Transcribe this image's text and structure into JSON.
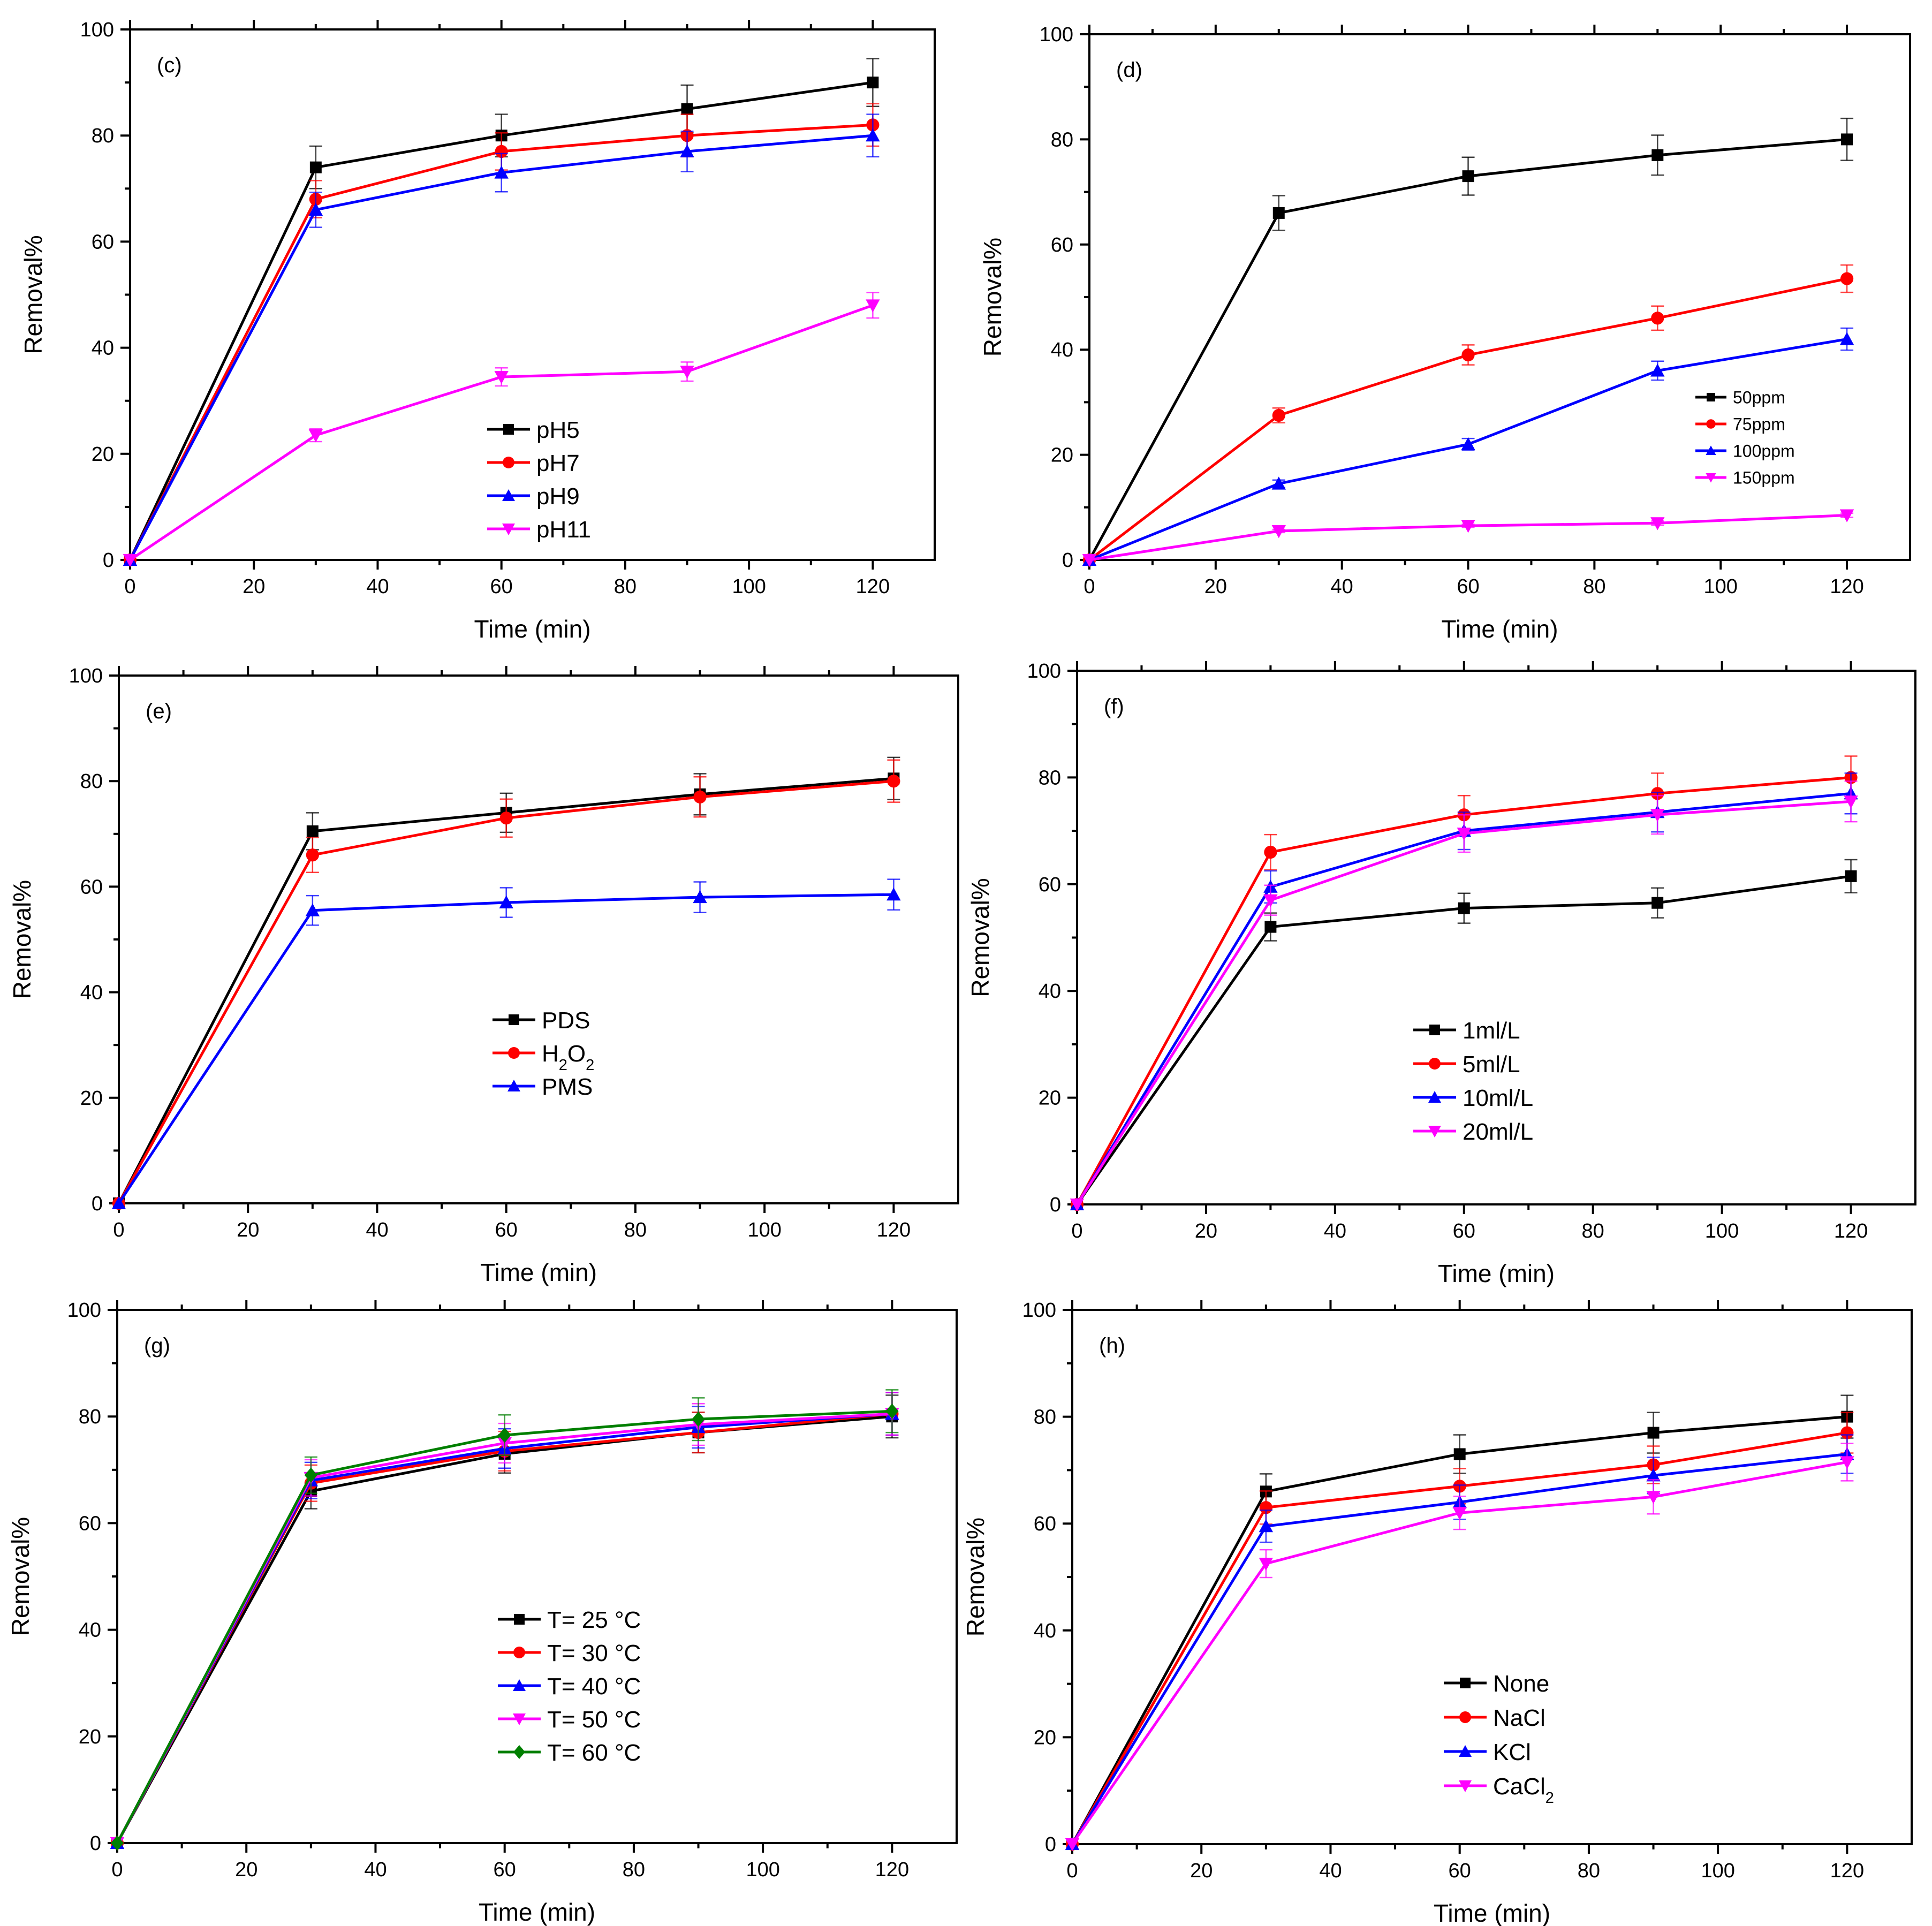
{
  "figure": {
    "layout": "3 rows x 2 columns of line charts with error bars",
    "series_colors": {
      "black": "#000000",
      "red": "#ff0000",
      "blue": "#0000ff",
      "magenta": "#ff00ff",
      "green": "#007f00"
    }
  },
  "chart_data": [
    {
      "type": "line",
      "panel": "(c)",
      "xlabel": "Time (min)",
      "ylabel": "Removal%",
      "xlim": [
        0,
        130
      ],
      "ylim": [
        0,
        100
      ],
      "x_ticks": [
        0,
        20,
        40,
        60,
        80,
        100,
        120
      ],
      "y_ticks": [
        0,
        20,
        40,
        60,
        80,
        100
      ],
      "legend_position": "center-bottom",
      "x": [
        0,
        30,
        60,
        90,
        120
      ],
      "series": [
        {
          "name": "pH5",
          "color": "#000000",
          "marker": "square",
          "values": [
            0,
            74,
            80,
            85,
            90
          ],
          "errors": [
            0,
            4,
            4,
            4.5,
            4.5
          ]
        },
        {
          "name": "pH7",
          "color": "#ff0000",
          "marker": "circle",
          "values": [
            0,
            68,
            77,
            80,
            82
          ],
          "errors": [
            0,
            3.5,
            3.5,
            4,
            4
          ]
        },
        {
          "name": "pH9",
          "color": "#0000ff",
          "marker": "triangle-up",
          "values": [
            0,
            66,
            73,
            77,
            80
          ],
          "errors": [
            0,
            3.3,
            3.6,
            3.8,
            4
          ]
        },
        {
          "name": "pH11",
          "color": "#ff00ff",
          "marker": "triangle-down",
          "values": [
            0,
            23.5,
            34.5,
            35.5,
            48
          ],
          "errors": [
            0,
            1.2,
            1.7,
            1.8,
            2.4
          ]
        }
      ]
    },
    {
      "type": "line",
      "panel": "(d)",
      "xlabel": "Time (min)",
      "ylabel": "Removal%",
      "xlim": [
        0,
        130
      ],
      "ylim": [
        0,
        100
      ],
      "x_ticks": [
        0,
        20,
        40,
        60,
        80,
        100,
        120
      ],
      "y_ticks": [
        0,
        20,
        40,
        60,
        80,
        100
      ],
      "legend_position": "right-center",
      "x": [
        0,
        30,
        60,
        90,
        120
      ],
      "series": [
        {
          "name": "50ppm",
          "color": "#000000",
          "marker": "square",
          "values": [
            0,
            66,
            73,
            77,
            80
          ],
          "errors": [
            0,
            3.3,
            3.6,
            3.8,
            4
          ]
        },
        {
          "name": "75ppm",
          "color": "#ff0000",
          "marker": "circle",
          "values": [
            0,
            27.5,
            39,
            46,
            53.5
          ],
          "errors": [
            0,
            1.4,
            1.9,
            2.3,
            2.6
          ]
        },
        {
          "name": "100ppm",
          "color": "#0000ff",
          "marker": "triangle-up",
          "values": [
            0,
            14.5,
            22,
            36,
            42
          ],
          "errors": [
            0,
            0.7,
            1.1,
            1.8,
            2.1
          ]
        },
        {
          "name": "150ppm",
          "color": "#ff00ff",
          "marker": "triangle-down",
          "values": [
            0,
            5.5,
            6.5,
            7,
            8.5
          ],
          "errors": [
            0,
            0.3,
            0.3,
            0.4,
            0.4
          ]
        }
      ]
    },
    {
      "type": "line",
      "panel": "(e)",
      "xlabel": "Time (min)",
      "ylabel": "Removal%",
      "xlim": [
        0,
        130
      ],
      "ylim": [
        0,
        100
      ],
      "x_ticks": [
        0,
        20,
        40,
        60,
        80,
        100,
        120
      ],
      "y_ticks": [
        0,
        20,
        40,
        60,
        80,
        100
      ],
      "legend_position": "center-bottom",
      "x": [
        0,
        30,
        60,
        90,
        120
      ],
      "series": [
        {
          "name": "PDS",
          "sub": "",
          "color": "#000000",
          "marker": "square",
          "values": [
            0,
            70.5,
            74,
            77.5,
            80.5
          ],
          "errors": [
            0,
            3.5,
            3.7,
            3.9,
            4
          ]
        },
        {
          "name": "H",
          "sub": "2",
          "name2": "O",
          "sub2": "2",
          "color": "#ff0000",
          "marker": "circle",
          "values": [
            0,
            66,
            73,
            77,
            80
          ],
          "errors": [
            0,
            3.3,
            3.6,
            3.8,
            4
          ]
        },
        {
          "name": "PMS",
          "sub": "",
          "color": "#0000ff",
          "marker": "triangle-up",
          "values": [
            0,
            55.5,
            57,
            58,
            58.5
          ],
          "errors": [
            0,
            2.8,
            2.8,
            2.9,
            2.9
          ]
        }
      ]
    },
    {
      "type": "line",
      "panel": "(f)",
      "xlabel": "Time (min)",
      "ylabel": "Removal%",
      "xlim": [
        0,
        130
      ],
      "ylim": [
        0,
        100
      ],
      "x_ticks": [
        0,
        20,
        40,
        60,
        80,
        100,
        120
      ],
      "y_ticks": [
        0,
        20,
        40,
        60,
        80,
        100
      ],
      "legend_position": "center-bottom",
      "x": [
        0,
        30,
        60,
        90,
        120
      ],
      "series": [
        {
          "name": "1ml/L",
          "color": "#000000",
          "marker": "square",
          "values": [
            0,
            52,
            55.5,
            56.5,
            61.5
          ],
          "errors": [
            0,
            2.6,
            2.8,
            2.8,
            3.1
          ]
        },
        {
          "name": "5ml/L",
          "color": "#ff0000",
          "marker": "circle",
          "values": [
            0,
            66,
            73,
            77,
            80
          ],
          "errors": [
            0,
            3.3,
            3.6,
            3.8,
            4
          ]
        },
        {
          "name": "10ml/L",
          "color": "#0000ff",
          "marker": "triangle-up",
          "values": [
            0,
            59.5,
            70,
            73.5,
            77
          ],
          "errors": [
            0,
            3,
            3.5,
            3.7,
            3.8
          ]
        },
        {
          "name": "20ml/L",
          "color": "#ff00ff",
          "marker": "triangle-down",
          "values": [
            0,
            57,
            69.5,
            73,
            75.5
          ],
          "errors": [
            0,
            2.8,
            3.5,
            3.6,
            3.8
          ]
        }
      ]
    },
    {
      "type": "line",
      "panel": "(g)",
      "xlabel": "Time (min)",
      "ylabel": "Removal%",
      "xlim": [
        0,
        130
      ],
      "ylim": [
        0,
        100
      ],
      "x_ticks": [
        0,
        20,
        40,
        60,
        80,
        100,
        120
      ],
      "y_ticks": [
        0,
        20,
        40,
        60,
        80,
        100
      ],
      "legend_position": "center-bottom",
      "x": [
        0,
        30,
        60,
        90,
        120
      ],
      "series": [
        {
          "name": "T= 25 °C",
          "color": "#000000",
          "marker": "square",
          "values": [
            0,
            66,
            73,
            77,
            80
          ],
          "errors": [
            0,
            3.3,
            3.6,
            3.8,
            4
          ]
        },
        {
          "name": "T= 30 °C",
          "color": "#ff0000",
          "marker": "circle",
          "values": [
            0,
            67.5,
            73.5,
            77,
            80.5
          ],
          "errors": [
            0,
            3.4,
            3.7,
            3.8,
            4
          ]
        },
        {
          "name": "T= 40 °C",
          "color": "#0000ff",
          "marker": "triangle-up",
          "values": [
            0,
            68,
            74,
            78,
            80.5
          ],
          "errors": [
            0,
            3.4,
            3.7,
            3.9,
            4
          ]
        },
        {
          "name": "T= 50 °C",
          "color": "#ff00ff",
          "marker": "triangle-down",
          "values": [
            0,
            68.5,
            75,
            78.5,
            80.5
          ],
          "errors": [
            0,
            3.4,
            3.7,
            3.9,
            4
          ]
        },
        {
          "name": "T= 60 °C",
          "color": "#007f00",
          "marker": "diamond",
          "values": [
            0,
            69,
            76.5,
            79.5,
            81
          ],
          "errors": [
            0,
            3.4,
            3.8,
            4,
            4
          ]
        }
      ]
    },
    {
      "type": "line",
      "panel": "(h)",
      "xlabel": "Time (min)",
      "ylabel": "Removal%",
      "xlim": [
        0,
        130
      ],
      "ylim": [
        0,
        100
      ],
      "x_ticks": [
        0,
        20,
        40,
        60,
        80,
        100,
        120
      ],
      "y_ticks": [
        0,
        20,
        40,
        60,
        80,
        100
      ],
      "legend_position": "center-bottom",
      "x": [
        0,
        30,
        60,
        90,
        120
      ],
      "series": [
        {
          "name": "None",
          "sub": "",
          "color": "#000000",
          "marker": "square",
          "values": [
            0,
            66,
            73,
            77,
            80
          ],
          "errors": [
            0,
            3.3,
            3.6,
            3.8,
            4
          ]
        },
        {
          "name": "NaCl",
          "sub": "",
          "color": "#ff0000",
          "marker": "circle",
          "values": [
            0,
            63,
            67,
            71,
            77
          ],
          "errors": [
            0,
            3.1,
            3.3,
            3.5,
            3.8
          ]
        },
        {
          "name": "KCl",
          "sub": "",
          "color": "#0000ff",
          "marker": "triangle-up",
          "values": [
            0,
            59.5,
            64,
            69,
            73
          ],
          "errors": [
            0,
            3,
            3.2,
            3.4,
            3.6
          ]
        },
        {
          "name": "CaCl",
          "sub": "2",
          "color": "#ff00ff",
          "marker": "triangle-down",
          "values": [
            0,
            52.5,
            62,
            65,
            71.5
          ],
          "errors": [
            0,
            2.6,
            3.1,
            3.2,
            3.5
          ]
        }
      ]
    }
  ]
}
